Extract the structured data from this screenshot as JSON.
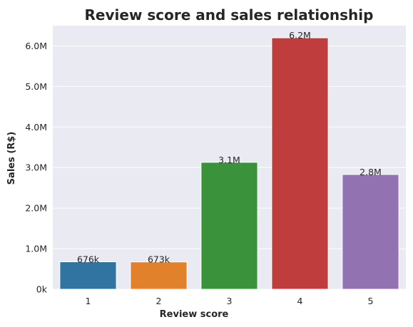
{
  "chart_data": {
    "type": "bar",
    "title": "Review score and sales relationship",
    "xlabel": "Review score",
    "ylabel": "Sales (R$)",
    "categories": [
      "1",
      "2",
      "3",
      "4",
      "5"
    ],
    "values": [
      676000,
      673000,
      3130000,
      6200000,
      2830000
    ],
    "data_labels": [
      "676k",
      "673k",
      "3.1M",
      "6.2M",
      "2.8M"
    ],
    "ylim": [
      0,
      6500000
    ],
    "yticks": [
      0,
      1000000,
      2000000,
      3000000,
      4000000,
      5000000,
      6000000
    ],
    "ytick_labels": [
      "0k",
      "1.0M",
      "2.0M",
      "3.0M",
      "4.0M",
      "5.0M",
      "6.0M"
    ],
    "colors": [
      "#3274a1",
      "#e1812c",
      "#3a923a",
      "#c03d3e",
      "#9372b2"
    ],
    "background": "#eaeaf2",
    "gridline_color": "#ffffff",
    "grid": true
  }
}
